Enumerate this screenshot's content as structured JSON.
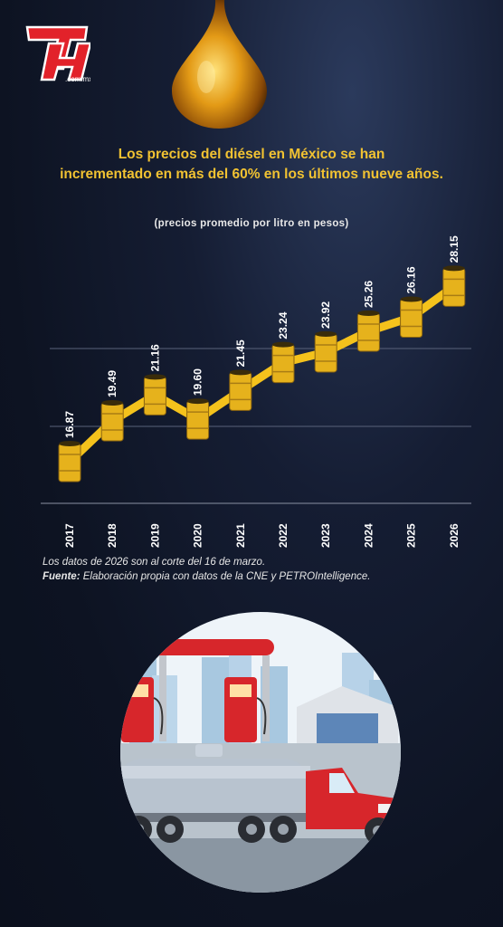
{
  "brand": {
    "logo_text": "TyT",
    "logo_domain": ".com.mx"
  },
  "header": {
    "title_line1": "Los precios del diésel en México se han",
    "title_line2": "incrementado en más del 60% en los últimos nueve años.",
    "subtitle": "(precios promedio por litro en pesos)"
  },
  "chart_data": {
    "type": "line",
    "title": "Los precios del diésel en México se han incrementado en más del 60% en los últimos nueve años.",
    "subtitle": "(precios promedio por litro en pesos)",
    "xlabel": "",
    "ylabel": "",
    "x": [
      "2017",
      "2018",
      "2019",
      "2020",
      "2021",
      "2022",
      "2023",
      "2024",
      "2025",
      "2026"
    ],
    "series": [
      {
        "values": [
          16.87,
          19.49,
          21.16,
          19.6,
          21.45,
          23.24,
          23.92,
          25.26,
          26.16,
          28.15
        ]
      }
    ],
    "value_labels": [
      "16.87",
      "19.49",
      "21.16",
      "19.60",
      "21.45",
      "23.24",
      "23.92",
      "25.26",
      "26.16",
      "28.15"
    ],
    "grid": "horizontal",
    "legend": "none",
    "colors": {
      "line": "#f4c21c",
      "barrel": "#e6b21c",
      "label": "#ffffff"
    }
  },
  "notes": {
    "line1": "Los datos de 2026 son al corte del 16 de marzo.",
    "source_label": "Fuente:",
    "source_text": " Elaboración propia con datos de la CNE y PETROIntelligence."
  },
  "illustration": {
    "subject": "gas-station-with-tanker-truck"
  }
}
